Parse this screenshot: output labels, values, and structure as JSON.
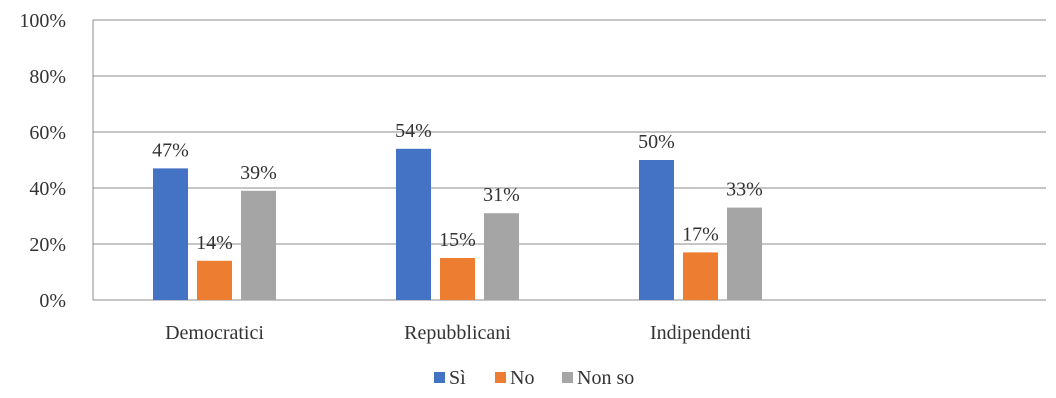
{
  "chart_data": {
    "type": "bar",
    "categories": [
      "Democratici",
      "Repubblicani",
      "Indipendenti"
    ],
    "series": [
      {
        "name": "Sì",
        "values": [
          47,
          54,
          50
        ],
        "color": "#4472C4"
      },
      {
        "name": "No",
        "values": [
          14,
          15,
          17
        ],
        "color": "#ED7D31"
      },
      {
        "name": "Non so",
        "values": [
          39,
          31,
          33
        ],
        "color": "#A5A5A5"
      }
    ],
    "data_labels": [
      [
        "47%",
        "54%",
        "50%"
      ],
      [
        "14%",
        "15%",
        "17%"
      ],
      [
        "39%",
        "31%",
        "33%"
      ]
    ],
    "ylim": [
      0,
      100
    ],
    "yticks": [
      0,
      20,
      40,
      60,
      80,
      100
    ],
    "ytick_labels": [
      "0%",
      "20%",
      "40%",
      "60%",
      "80%",
      "100%"
    ],
    "title": "",
    "xlabel": "",
    "ylabel": "",
    "grid": true,
    "legend_position": "bottom",
    "gridline_color": "#8C8C8C"
  }
}
